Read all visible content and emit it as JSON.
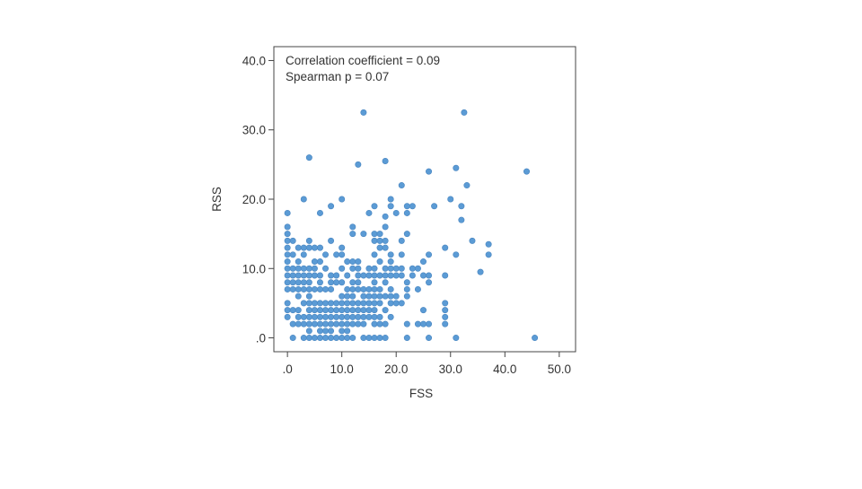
{
  "chart_data": {
    "type": "scatter",
    "title": "",
    "xlabel": "FSS",
    "ylabel": "RSS",
    "xlim": [
      -2.5,
      53
    ],
    "ylim": [
      -2,
      42
    ],
    "xticks": [
      {
        "value": 0,
        "label": ".0"
      },
      {
        "value": 10,
        "label": "10.0"
      },
      {
        "value": 20,
        "label": "20.0"
      },
      {
        "value": 30,
        "label": "30.0"
      },
      {
        "value": 40,
        "label": "40.0"
      },
      {
        "value": 50,
        "label": "50.0"
      }
    ],
    "yticks": [
      {
        "value": 0,
        "label": ".0"
      },
      {
        "value": 10,
        "label": "10.0"
      },
      {
        "value": 20,
        "label": "20.0"
      },
      {
        "value": 30,
        "label": "30.0"
      },
      {
        "value": 40,
        "label": "40.0"
      }
    ],
    "annotations": [
      "Correlation coefficient = 0.09",
      "Spearman p = 0.07"
    ],
    "legend": "none",
    "grid": false,
    "colors": {
      "marker": "#5b9bd5",
      "marker_edge": "#4a86c0",
      "axis": "#444444"
    },
    "series": [
      {
        "points": [
          [
            0,
            18
          ],
          [
            0,
            16
          ],
          [
            0,
            15
          ],
          [
            0,
            14
          ],
          [
            0,
            13
          ],
          [
            0,
            12
          ],
          [
            0,
            11
          ],
          [
            0,
            10
          ],
          [
            0,
            9
          ],
          [
            0,
            8
          ],
          [
            0,
            7
          ],
          [
            0,
            5
          ],
          [
            0,
            4
          ],
          [
            0,
            3
          ],
          [
            1,
            14
          ],
          [
            1,
            12
          ],
          [
            1,
            10
          ],
          [
            1,
            9
          ],
          [
            1,
            8
          ],
          [
            1,
            7
          ],
          [
            1,
            4
          ],
          [
            1,
            2
          ],
          [
            1,
            0
          ],
          [
            2,
            13
          ],
          [
            2,
            11
          ],
          [
            2,
            10
          ],
          [
            2,
            9
          ],
          [
            2,
            8
          ],
          [
            2,
            7
          ],
          [
            2,
            6
          ],
          [
            2,
            4
          ],
          [
            2,
            3
          ],
          [
            2,
            2
          ],
          [
            3,
            20
          ],
          [
            3,
            13
          ],
          [
            3,
            12
          ],
          [
            3,
            10
          ],
          [
            3,
            9
          ],
          [
            3,
            8
          ],
          [
            3,
            7
          ],
          [
            3,
            5
          ],
          [
            3,
            3
          ],
          [
            3,
            2
          ],
          [
            3,
            0
          ],
          [
            4,
            26
          ],
          [
            4,
            14
          ],
          [
            4,
            13
          ],
          [
            4,
            10
          ],
          [
            4,
            9
          ],
          [
            4,
            8
          ],
          [
            4,
            7
          ],
          [
            4,
            6
          ],
          [
            4,
            5
          ],
          [
            4,
            4
          ],
          [
            4,
            3
          ],
          [
            4,
            2
          ],
          [
            4,
            1
          ],
          [
            4,
            0
          ],
          [
            5,
            13
          ],
          [
            5,
            11
          ],
          [
            5,
            10
          ],
          [
            5,
            9
          ],
          [
            5,
            7
          ],
          [
            5,
            5
          ],
          [
            5,
            4
          ],
          [
            5,
            3
          ],
          [
            5,
            2
          ],
          [
            5,
            0
          ],
          [
            6,
            18
          ],
          [
            6,
            13
          ],
          [
            6,
            11
          ],
          [
            6,
            9
          ],
          [
            6,
            8
          ],
          [
            6,
            7
          ],
          [
            6,
            5
          ],
          [
            6,
            4
          ],
          [
            6,
            3
          ],
          [
            6,
            2
          ],
          [
            6,
            1
          ],
          [
            6,
            0
          ],
          [
            7,
            12
          ],
          [
            7,
            10
          ],
          [
            7,
            7
          ],
          [
            7,
            5
          ],
          [
            7,
            4
          ],
          [
            7,
            3
          ],
          [
            7,
            2
          ],
          [
            7,
            1
          ],
          [
            7,
            0
          ],
          [
            8,
            19
          ],
          [
            8,
            14
          ],
          [
            8,
            9
          ],
          [
            8,
            8
          ],
          [
            8,
            7
          ],
          [
            8,
            5
          ],
          [
            8,
            4
          ],
          [
            8,
            3
          ],
          [
            8,
            2
          ],
          [
            8,
            1
          ],
          [
            8,
            0
          ],
          [
            9,
            12
          ],
          [
            9,
            9
          ],
          [
            9,
            8
          ],
          [
            9,
            5
          ],
          [
            9,
            4
          ],
          [
            9,
            3
          ],
          [
            9,
            2
          ],
          [
            9,
            0
          ],
          [
            10,
            20
          ],
          [
            10,
            13
          ],
          [
            10,
            12
          ],
          [
            10,
            10
          ],
          [
            10,
            8
          ],
          [
            10,
            6
          ],
          [
            10,
            5
          ],
          [
            10,
            4
          ],
          [
            10,
            3
          ],
          [
            10,
            2
          ],
          [
            10,
            1
          ],
          [
            10,
            0
          ],
          [
            11,
            11
          ],
          [
            11,
            9
          ],
          [
            11,
            7
          ],
          [
            11,
            6
          ],
          [
            11,
            5
          ],
          [
            11,
            4
          ],
          [
            11,
            3
          ],
          [
            11,
            2
          ],
          [
            11,
            1
          ],
          [
            11,
            0
          ],
          [
            12,
            16
          ],
          [
            12,
            15
          ],
          [
            12,
            11
          ],
          [
            12,
            10
          ],
          [
            12,
            8
          ],
          [
            12,
            7
          ],
          [
            12,
            6
          ],
          [
            12,
            5
          ],
          [
            12,
            4
          ],
          [
            12,
            3
          ],
          [
            12,
            2
          ],
          [
            12,
            0
          ],
          [
            13,
            25
          ],
          [
            13,
            11
          ],
          [
            13,
            10
          ],
          [
            13,
            9
          ],
          [
            13,
            8
          ],
          [
            13,
            7
          ],
          [
            13,
            5
          ],
          [
            13,
            4
          ],
          [
            13,
            3
          ],
          [
            13,
            2
          ],
          [
            14,
            32.5
          ],
          [
            14,
            15
          ],
          [
            14,
            9
          ],
          [
            14,
            7
          ],
          [
            14,
            6
          ],
          [
            14,
            5
          ],
          [
            14,
            4
          ],
          [
            14,
            3
          ],
          [
            14,
            2
          ],
          [
            14,
            0
          ],
          [
            15,
            18
          ],
          [
            15,
            10
          ],
          [
            15,
            9
          ],
          [
            15,
            7
          ],
          [
            15,
            6
          ],
          [
            15,
            5
          ],
          [
            15,
            4
          ],
          [
            15,
            3
          ],
          [
            15,
            0
          ],
          [
            16,
            19
          ],
          [
            16,
            15
          ],
          [
            16,
            14
          ],
          [
            16,
            12
          ],
          [
            16,
            10
          ],
          [
            16,
            9
          ],
          [
            16,
            8
          ],
          [
            16,
            7
          ],
          [
            16,
            6
          ],
          [
            16,
            5
          ],
          [
            16,
            4
          ],
          [
            16,
            3
          ],
          [
            16,
            2
          ],
          [
            16,
            0
          ],
          [
            17,
            15
          ],
          [
            17,
            14
          ],
          [
            17,
            13
          ],
          [
            17,
            11
          ],
          [
            17,
            9
          ],
          [
            17,
            7
          ],
          [
            17,
            6
          ],
          [
            17,
            5
          ],
          [
            17,
            3
          ],
          [
            17,
            2
          ],
          [
            17,
            0
          ],
          [
            18,
            25.5
          ],
          [
            18,
            17.5
          ],
          [
            18,
            16
          ],
          [
            18,
            14
          ],
          [
            18,
            13
          ],
          [
            18,
            10
          ],
          [
            18,
            9
          ],
          [
            18,
            8
          ],
          [
            18,
            6
          ],
          [
            18,
            4
          ],
          [
            18,
            2
          ],
          [
            18,
            0
          ],
          [
            19,
            20
          ],
          [
            19,
            19
          ],
          [
            19,
            12
          ],
          [
            19,
            11
          ],
          [
            19,
            10
          ],
          [
            19,
            9
          ],
          [
            19,
            7
          ],
          [
            19,
            6
          ],
          [
            19,
            5
          ],
          [
            19,
            3
          ],
          [
            20,
            18
          ],
          [
            20,
            10
          ],
          [
            20,
            9
          ],
          [
            20,
            6
          ],
          [
            20,
            5
          ],
          [
            21,
            22
          ],
          [
            21,
            14
          ],
          [
            21,
            12
          ],
          [
            21,
            10
          ],
          [
            21,
            9
          ],
          [
            21,
            5
          ],
          [
            22,
            19
          ],
          [
            22,
            18
          ],
          [
            22,
            15
          ],
          [
            22,
            8
          ],
          [
            22,
            7
          ],
          [
            22,
            6
          ],
          [
            22,
            2
          ],
          [
            22,
            0
          ],
          [
            23,
            19
          ],
          [
            23,
            10
          ],
          [
            23,
            9
          ],
          [
            24,
            10
          ],
          [
            24,
            7
          ],
          [
            24,
            2
          ],
          [
            25,
            11
          ],
          [
            25,
            9
          ],
          [
            25,
            4
          ],
          [
            25,
            2
          ],
          [
            26,
            24
          ],
          [
            26,
            12
          ],
          [
            26,
            9
          ],
          [
            26,
            8
          ],
          [
            26,
            2
          ],
          [
            26,
            0
          ],
          [
            27,
            19
          ],
          [
            29,
            13
          ],
          [
            29,
            9
          ],
          [
            29,
            5
          ],
          [
            29,
            4
          ],
          [
            29,
            3
          ],
          [
            29,
            2
          ],
          [
            30,
            20
          ],
          [
            31,
            24.5
          ],
          [
            31,
            12
          ],
          [
            31,
            0
          ],
          [
            32,
            17
          ],
          [
            32,
            19
          ],
          [
            32.5,
            32.5
          ],
          [
            33,
            22
          ],
          [
            34,
            14
          ],
          [
            35.5,
            9.5
          ],
          [
            37,
            13.5
          ],
          [
            37,
            12
          ],
          [
            44,
            24
          ],
          [
            45.5,
            0
          ]
        ]
      }
    ]
  }
}
